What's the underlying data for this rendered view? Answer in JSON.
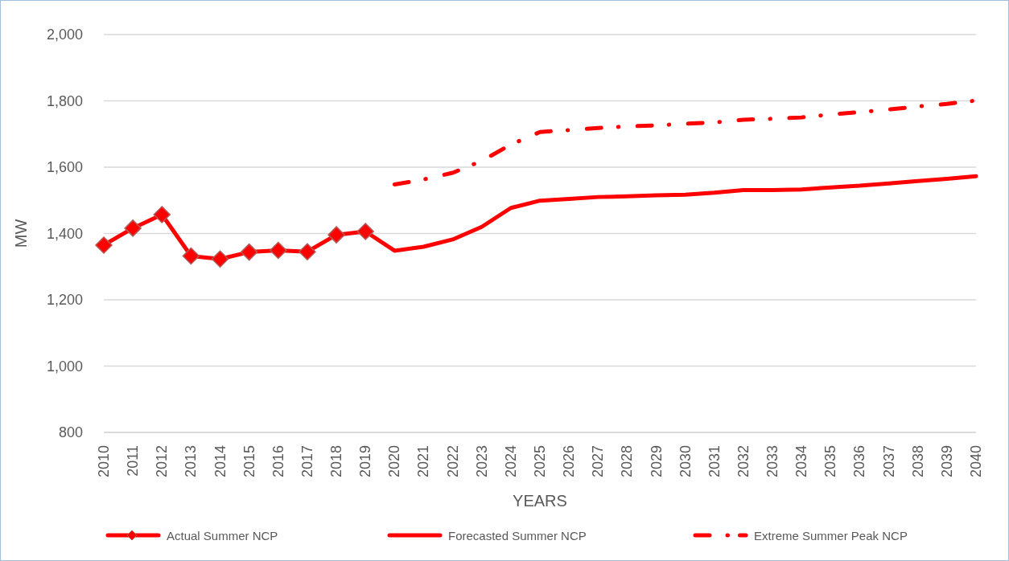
{
  "chart_data": {
    "type": "line",
    "xlabel": "YEARS",
    "ylabel": "MW",
    "categories": [
      "2010",
      "2011",
      "2012",
      "2013",
      "2014",
      "2015",
      "2016",
      "2017",
      "2018",
      "2019",
      "2020",
      "2021",
      "2022",
      "2023",
      "2024",
      "2025",
      "2026",
      "2027",
      "2028",
      "2029",
      "2030",
      "2031",
      "2032",
      "2033",
      "2034",
      "2035",
      "2036",
      "2037",
      "2038",
      "2039",
      "2040"
    ],
    "series": [
      {
        "name": "Actual Summer NCP",
        "color": "#ff0000",
        "marker": "diamond",
        "line_style": "solid",
        "values": [
          1365,
          1416,
          1457,
          1332,
          1323,
          1344,
          1349,
          1345,
          1396,
          1406,
          null,
          null,
          null,
          null,
          null,
          null,
          null,
          null,
          null,
          null,
          null,
          null,
          null,
          null,
          null,
          null,
          null,
          null,
          null,
          null,
          null
        ]
      },
      {
        "name": "Forecasted Summer NCP",
        "color": "#ff0000",
        "marker": "none",
        "line_style": "solid",
        "values": [
          null,
          null,
          null,
          null,
          null,
          null,
          null,
          null,
          null,
          1406,
          1348,
          1360,
          1382,
          1420,
          1477,
          1499,
          1504,
          1510,
          1512,
          1515,
          1517,
          1523,
          1531,
          1531,
          1533,
          1539,
          1544,
          1551,
          1558,
          1565,
          1573
        ]
      },
      {
        "name": "Extreme Summer Peak NCP",
        "color": "#ff0000",
        "marker": "none",
        "line_style": "dashed",
        "values": [
          null,
          null,
          null,
          null,
          null,
          null,
          null,
          null,
          null,
          null,
          1548,
          1563,
          1583,
          1619,
          1668,
          1706,
          1712,
          1718,
          1723,
          1726,
          1731,
          1735,
          1743,
          1746,
          1750,
          1759,
          1766,
          1774,
          1783,
          1791,
          1801
        ]
      }
    ],
    "ylim": [
      800,
      2000
    ],
    "yticks": [
      800,
      {
        "value": 1000,
        "label": "1,000"
      },
      {
        "value": 1200,
        "label": "1,200"
      },
      {
        "value": 1400,
        "label": "1,400"
      },
      {
        "value": 1600,
        "label": "1,600"
      },
      {
        "value": 1800,
        "label": "1,800"
      },
      {
        "value": 2000,
        "label": "2,000"
      }
    ],
    "grid": "y",
    "legend": "bottom"
  }
}
